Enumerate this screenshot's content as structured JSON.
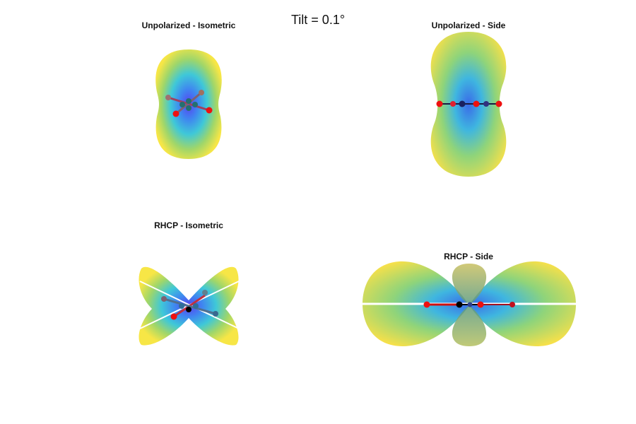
{
  "title": "Tilt = 0.1°",
  "panels": [
    {
      "title": "Unpolarized - Isometric"
    },
    {
      "title": "Unpolarized - Side"
    },
    {
      "title": "RHCP - Isometric"
    },
    {
      "title": "RHCP - Side"
    }
  ]
}
